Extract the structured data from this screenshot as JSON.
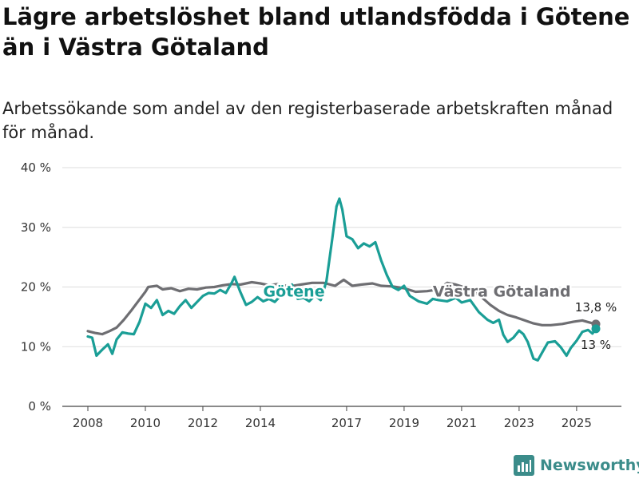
{
  "title": "Lägre arbetslöshet bland utlandsfödda i Götene än i Västra Götaland",
  "subtitle": "Arbetssökande som andel av den registerbaserade arbetskraften månad för månad.",
  "brand": {
    "name": "Newsworthy",
    "color": "#3b8c8a"
  },
  "chart_data": {
    "type": "line",
    "x_range": [
      2008.0,
      2025.67
    ],
    "ylim": [
      0,
      40
    ],
    "y_ticks": [
      0,
      10,
      20,
      30,
      40
    ],
    "y_tick_labels": [
      "0 %",
      "10 %",
      "20 %",
      "30 %",
      "40 %"
    ],
    "x_ticks": [
      2008,
      2010,
      2012,
      2014,
      2017,
      2019,
      2021,
      2023,
      2025
    ],
    "x_tick_labels": [
      "2008",
      "2010",
      "2012",
      "2014",
      "2017",
      "2019",
      "2021",
      "2023",
      "2025"
    ],
    "grid": true,
    "series": [
      {
        "name": "Västra Götaland",
        "color": "#6e6e72",
        "end_label": "13,8 %",
        "points": [
          [
            2008.0,
            12.6
          ],
          [
            2008.25,
            12.3
          ],
          [
            2008.5,
            12.1
          ],
          [
            2008.75,
            12.6
          ],
          [
            2009.0,
            13.2
          ],
          [
            2009.25,
            14.5
          ],
          [
            2009.5,
            16.0
          ],
          [
            2009.75,
            17.6
          ],
          [
            2010.0,
            19.2
          ],
          [
            2010.1,
            20.0
          ],
          [
            2010.4,
            20.2
          ],
          [
            2010.6,
            19.6
          ],
          [
            2010.9,
            19.8
          ],
          [
            2011.2,
            19.3
          ],
          [
            2011.5,
            19.7
          ],
          [
            2011.8,
            19.6
          ],
          [
            2012.1,
            19.9
          ],
          [
            2012.4,
            20.0
          ],
          [
            2012.7,
            20.3
          ],
          [
            2013.0,
            20.5
          ],
          [
            2013.3,
            20.4
          ],
          [
            2013.7,
            20.8
          ],
          [
            2014.0,
            20.6
          ],
          [
            2014.3,
            20.3
          ],
          [
            2014.6,
            20.5
          ],
          [
            2015.0,
            20.1
          ],
          [
            2015.4,
            20.4
          ],
          [
            2015.8,
            20.7
          ],
          [
            2016.2,
            20.7
          ],
          [
            2016.6,
            20.2
          ],
          [
            2016.9,
            21.2
          ],
          [
            2017.2,
            20.2
          ],
          [
            2017.5,
            20.4
          ],
          [
            2017.9,
            20.6
          ],
          [
            2018.2,
            20.2
          ],
          [
            2018.6,
            20.1
          ],
          [
            2019.0,
            19.8
          ],
          [
            2019.4,
            19.2
          ],
          [
            2019.8,
            19.3
          ],
          [
            2020.2,
            19.6
          ],
          [
            2020.5,
            20.7
          ],
          [
            2020.8,
            20.4
          ],
          [
            2021.2,
            19.8
          ],
          [
            2021.6,
            18.7
          ],
          [
            2022.0,
            17.0
          ],
          [
            2022.3,
            16.0
          ],
          [
            2022.6,
            15.3
          ],
          [
            2022.9,
            14.9
          ],
          [
            2023.2,
            14.4
          ],
          [
            2023.5,
            13.9
          ],
          [
            2023.8,
            13.6
          ],
          [
            2024.1,
            13.6
          ],
          [
            2024.5,
            13.8
          ],
          [
            2024.9,
            14.2
          ],
          [
            2025.2,
            14.4
          ],
          [
            2025.5,
            14.0
          ],
          [
            2025.67,
            13.8
          ]
        ]
      },
      {
        "name": "Götene",
        "color": "#1a9e96",
        "end_label": "13 %",
        "points": [
          [
            2008.0,
            11.7
          ],
          [
            2008.15,
            11.5
          ],
          [
            2008.3,
            8.5
          ],
          [
            2008.5,
            9.5
          ],
          [
            2008.7,
            10.4
          ],
          [
            2008.85,
            8.8
          ],
          [
            2009.0,
            11.2
          ],
          [
            2009.2,
            12.4
          ],
          [
            2009.4,
            12.2
          ],
          [
            2009.6,
            12.1
          ],
          [
            2009.8,
            14.2
          ],
          [
            2010.0,
            17.2
          ],
          [
            2010.2,
            16.5
          ],
          [
            2010.4,
            17.8
          ],
          [
            2010.6,
            15.3
          ],
          [
            2010.8,
            16.0
          ],
          [
            2011.0,
            15.5
          ],
          [
            2011.2,
            16.8
          ],
          [
            2011.4,
            17.8
          ],
          [
            2011.6,
            16.5
          ],
          [
            2011.8,
            17.5
          ],
          [
            2012.0,
            18.5
          ],
          [
            2012.2,
            19.0
          ],
          [
            2012.4,
            18.9
          ],
          [
            2012.6,
            19.5
          ],
          [
            2012.8,
            19.0
          ],
          [
            2013.0,
            20.7
          ],
          [
            2013.1,
            21.7
          ],
          [
            2013.3,
            19.2
          ],
          [
            2013.5,
            17.0
          ],
          [
            2013.7,
            17.5
          ],
          [
            2013.9,
            18.3
          ],
          [
            2014.1,
            17.6
          ],
          [
            2014.3,
            18.0
          ],
          [
            2014.5,
            17.5
          ],
          [
            2014.7,
            18.5
          ],
          [
            2014.9,
            19.5
          ],
          [
            2015.1,
            20.4
          ],
          [
            2015.3,
            18.0
          ],
          [
            2015.5,
            18.2
          ],
          [
            2015.7,
            17.6
          ],
          [
            2015.9,
            18.6
          ],
          [
            2016.1,
            17.8
          ],
          [
            2016.3,
            21.0
          ],
          [
            2016.5,
            28.0
          ],
          [
            2016.65,
            33.5
          ],
          [
            2016.75,
            34.8
          ],
          [
            2016.85,
            33.0
          ],
          [
            2017.0,
            28.5
          ],
          [
            2017.2,
            28.0
          ],
          [
            2017.4,
            26.5
          ],
          [
            2017.6,
            27.3
          ],
          [
            2017.8,
            26.8
          ],
          [
            2018.0,
            27.5
          ],
          [
            2018.2,
            24.5
          ],
          [
            2018.4,
            22.0
          ],
          [
            2018.6,
            20.0
          ],
          [
            2018.8,
            19.5
          ],
          [
            2019.0,
            20.2
          ],
          [
            2019.2,
            18.5
          ],
          [
            2019.5,
            17.6
          ],
          [
            2019.8,
            17.2
          ],
          [
            2020.0,
            18.0
          ],
          [
            2020.2,
            17.8
          ],
          [
            2020.5,
            17.6
          ],
          [
            2020.8,
            18.2
          ],
          [
            2021.0,
            17.4
          ],
          [
            2021.3,
            17.8
          ],
          [
            2021.6,
            15.8
          ],
          [
            2021.9,
            14.5
          ],
          [
            2022.1,
            14.0
          ],
          [
            2022.3,
            14.5
          ],
          [
            2022.45,
            12.0
          ],
          [
            2022.6,
            10.8
          ],
          [
            2022.8,
            11.5
          ],
          [
            2023.0,
            12.7
          ],
          [
            2023.15,
            12.1
          ],
          [
            2023.3,
            10.8
          ],
          [
            2023.5,
            8.0
          ],
          [
            2023.65,
            7.7
          ],
          [
            2023.8,
            9.0
          ],
          [
            2024.0,
            10.7
          ],
          [
            2024.25,
            10.9
          ],
          [
            2024.45,
            9.9
          ],
          [
            2024.65,
            8.5
          ],
          [
            2024.8,
            9.8
          ],
          [
            2025.0,
            11.0
          ],
          [
            2025.2,
            12.5
          ],
          [
            2025.4,
            12.8
          ],
          [
            2025.55,
            12.2
          ],
          [
            2025.67,
            13.0
          ]
        ]
      }
    ],
    "annotations": [
      {
        "text": "Götene",
        "series": "Götene",
        "x": 2014.1,
        "y": 18.4
      },
      {
        "text": "Västra Götaland",
        "series": "Västra Götaland",
        "x": 2020.0,
        "y": 18.4
      }
    ]
  }
}
